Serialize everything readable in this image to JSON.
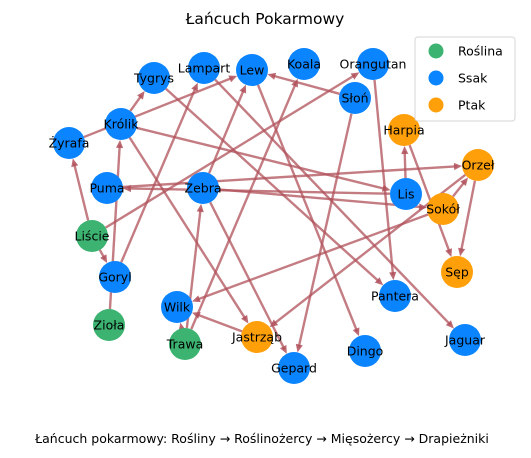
{
  "title": "Łańcuch Pokarmowy",
  "caption": "Łańcuch pokarmowy: Rośliny → Roślinożercy → Mięsożercy → Drapieżniki",
  "colors": {
    "Roślina": "#3cb371",
    "Ssak": "#0a84ff",
    "Ptak": "#ff9f0a",
    "edge": "#b0505a"
  },
  "legend": [
    "Roślina",
    "Ssak",
    "Ptak"
  ],
  "nodes": [
    {
      "id": "Tygrys",
      "group": "Ssak"
    },
    {
      "id": "Lampart",
      "group": "Ssak"
    },
    {
      "id": "Lew",
      "group": "Ssak"
    },
    {
      "id": "Koala",
      "group": "Ssak"
    },
    {
      "id": "Orangutan",
      "group": "Ssak"
    },
    {
      "id": "Słoń",
      "group": "Ssak"
    },
    {
      "id": "Królik",
      "group": "Ssak"
    },
    {
      "id": "Żyrafa",
      "group": "Ssak"
    },
    {
      "id": "Harpia",
      "group": "Ptak"
    },
    {
      "id": "Orzeł",
      "group": "Ptak"
    },
    {
      "id": "Puma",
      "group": "Ssak"
    },
    {
      "id": "Zebra",
      "group": "Ssak"
    },
    {
      "id": "Lis",
      "group": "Ssak"
    },
    {
      "id": "Sokół",
      "group": "Ptak"
    },
    {
      "id": "Liście",
      "group": "Roślina"
    },
    {
      "id": "Sęp",
      "group": "Ptak"
    },
    {
      "id": "Goryl",
      "group": "Ssak"
    },
    {
      "id": "Pantera",
      "group": "Ssak"
    },
    {
      "id": "Wilk",
      "group": "Ssak"
    },
    {
      "id": "Zioła",
      "group": "Roślina"
    },
    {
      "id": "Jastrząb",
      "group": "Ptak"
    },
    {
      "id": "Jaguar",
      "group": "Ssak"
    },
    {
      "id": "Trawa",
      "group": "Roślina"
    },
    {
      "id": "Dingo",
      "group": "Ssak"
    },
    {
      "id": "Gepard",
      "group": "Ssak"
    }
  ],
  "edges": [
    [
      "Liście",
      "Żyrafa"
    ],
    [
      "Liście",
      "Goryl"
    ],
    [
      "Liście",
      "Orangutan"
    ],
    [
      "Zioła",
      "Królik"
    ],
    [
      "Trawa",
      "Zebra"
    ],
    [
      "Trawa",
      "Koala"
    ],
    [
      "Trawa",
      "Wilk"
    ],
    [
      "Żyrafa",
      "Lew"
    ],
    [
      "Goryl",
      "Lampart"
    ],
    [
      "Królik",
      "Lis"
    ],
    [
      "Królik",
      "Jastrząb"
    ],
    [
      "Królik",
      "Tygrys"
    ],
    [
      "Zebra",
      "Lew"
    ],
    [
      "Zebra",
      "Sokół"
    ],
    [
      "Zebra",
      "Gepard"
    ],
    [
      "Lampart",
      "Jaguar"
    ],
    [
      "Tygrys",
      "Pantera"
    ],
    [
      "Lew",
      "Dingo"
    ],
    [
      "Słoń",
      "Lew"
    ],
    [
      "Słoń",
      "Gepard"
    ],
    [
      "Lis",
      "Puma"
    ],
    [
      "Lis",
      "Harpia"
    ],
    [
      "Sokół",
      "Orzeł"
    ],
    [
      "Harpia",
      "Sęp"
    ],
    [
      "Orzeł",
      "Sęp"
    ],
    [
      "Orzeł",
      "Jastrząb"
    ],
    [
      "Orangutan",
      "Pantera"
    ],
    [
      "Puma",
      "Orzeł"
    ],
    [
      "Jastrząb",
      "Wilk"
    ],
    [
      "Sokół",
      "Wilk"
    ]
  ]
}
